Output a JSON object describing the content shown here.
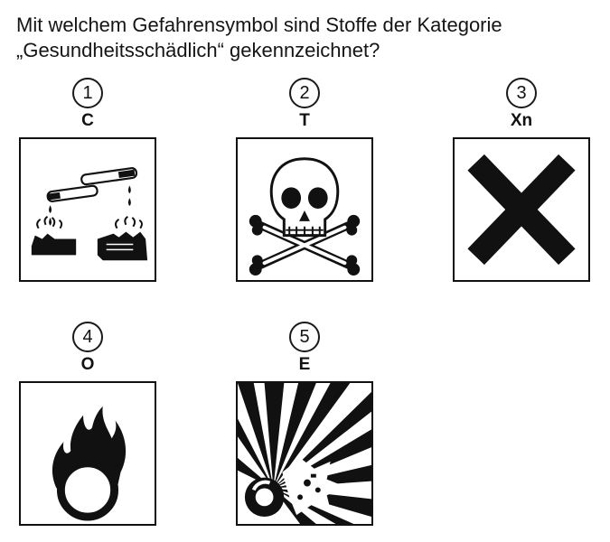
{
  "question": {
    "line1": "Mit welchem Gefahrensymbol sind Stoffe der Kategorie",
    "line2": "„Gesundheitsschädlich“ gekennzeichnet?"
  },
  "symbols": [
    {
      "number": "1",
      "code": "C",
      "icon": "corrosive-icon"
    },
    {
      "number": "2",
      "code": "T",
      "icon": "skull-crossbones-icon"
    },
    {
      "number": "3",
      "code": "Xn",
      "icon": "st-andrews-cross-icon"
    },
    {
      "number": "4",
      "code": "O",
      "icon": "flame-over-circle-icon"
    },
    {
      "number": "5",
      "code": "E",
      "icon": "exploding-bomb-icon"
    }
  ],
  "colors": {
    "ink": "#111111",
    "paper": "#ffffff"
  }
}
